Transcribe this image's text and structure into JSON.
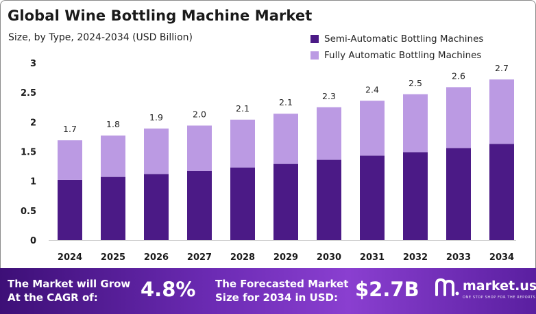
{
  "header": {
    "title": "Global Wine Bottling Machine Market",
    "subtitle": "Size, by Type, 2024-2034 (USD Billion)"
  },
  "colors": {
    "semi": "#4b1a86",
    "fully": "#bb9ae3",
    "axis_text": "#1a1a1a"
  },
  "chart_data": {
    "type": "bar",
    "stacked": true,
    "categories": [
      "2024",
      "2025",
      "2026",
      "2027",
      "2028",
      "2029",
      "2030",
      "2031",
      "2032",
      "2033",
      "2034"
    ],
    "series": [
      {
        "name": "Semi-Automatic Bottling Machines",
        "values": [
          1.02,
          1.07,
          1.12,
          1.17,
          1.23,
          1.29,
          1.36,
          1.43,
          1.49,
          1.56,
          1.63
        ]
      },
      {
        "name": "Fully Automatic Bottling Machines",
        "values": [
          0.67,
          0.7,
          0.77,
          0.77,
          0.81,
          0.85,
          0.89,
          0.93,
          0.98,
          1.03,
          1.09
        ]
      }
    ],
    "totals_labels": [
      "1.7",
      "1.8",
      "1.9",
      "2.0",
      "2.1",
      "2.1",
      "2.3",
      "2.4",
      "2.5",
      "2.6",
      "2.7"
    ],
    "ylim": [
      0,
      3
    ],
    "yticks": [
      "0",
      "0.5",
      "1",
      "1.5",
      "2",
      "2.5",
      "3"
    ],
    "xlabel": "",
    "ylabel": "",
    "grid": false,
    "legend": "top-right"
  },
  "footer": {
    "cagr_label": "The Market will Grow\nAt the CAGR of:",
    "cagr_value": "4.8%",
    "forecast_label": "The Forecasted Market\nSize for 2034 in USD:",
    "forecast_value": "$2.7B",
    "brand_name": "market.us",
    "brand_tagline": "ONE STOP SHOP FOR THE REPORTS"
  }
}
